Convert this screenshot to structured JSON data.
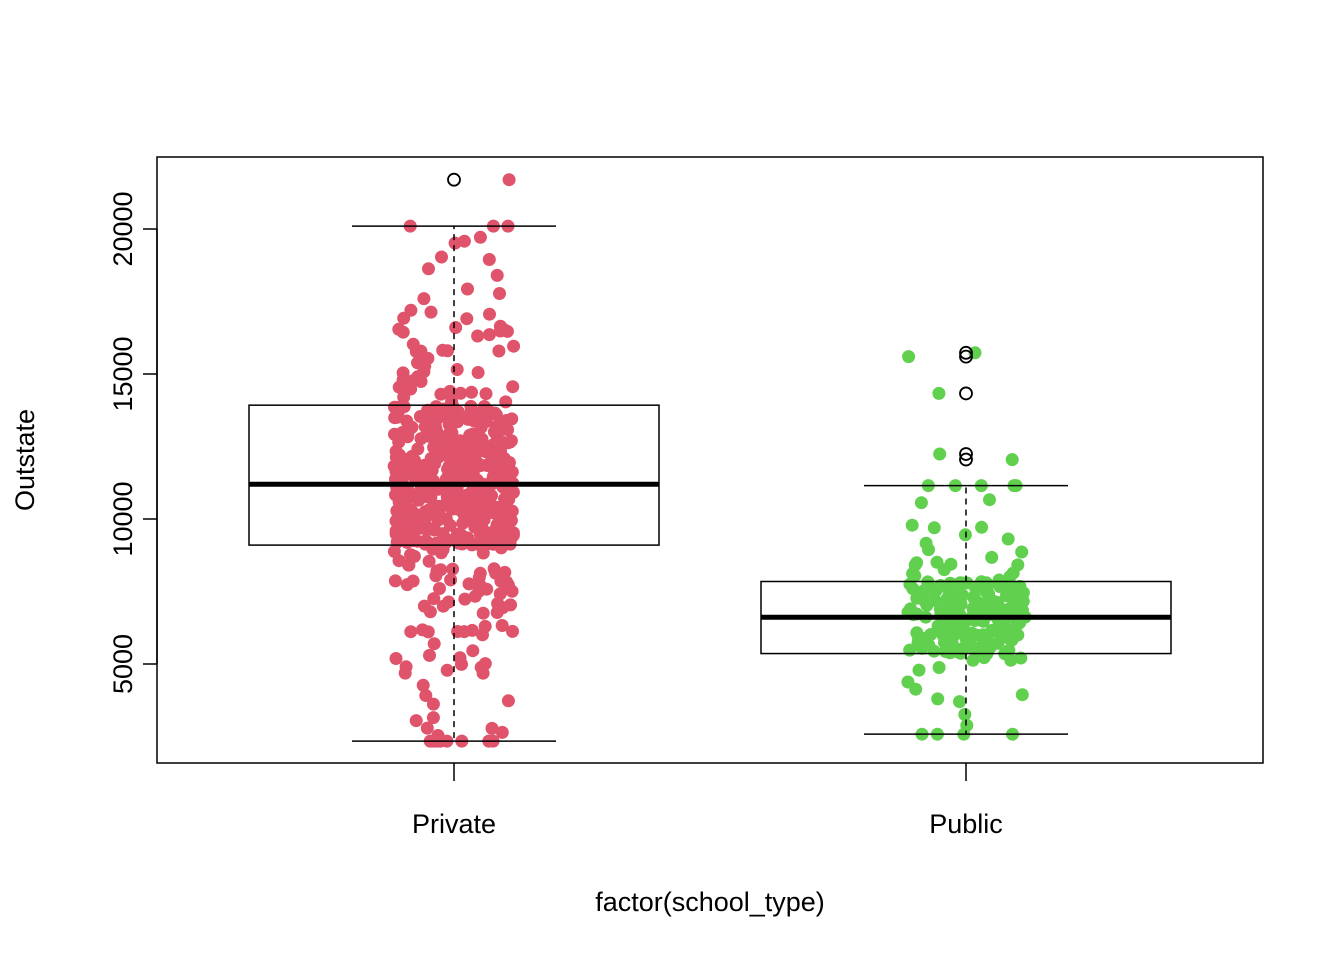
{
  "chart_data": {
    "type": "boxplot-with-jitter",
    "title": "",
    "xlabel": "factor(school_type)",
    "ylabel": "Outstate",
    "ylim": [
      2000,
      22500
    ],
    "yticks": [
      5000,
      10000,
      15000,
      20000
    ],
    "grid": false,
    "legend": "none",
    "colors": {
      "Private": "#DF536B",
      "Public": "#61D04F",
      "box": "#000000"
    },
    "groups": [
      {
        "name": "Private",
        "whisker_low": 2340,
        "q1": 9100,
        "median": 11200,
        "q3": 13925,
        "whisker_high": 20100,
        "outliers": [
          21700
        ],
        "n_points": 565
      },
      {
        "name": "Public",
        "whisker_low": 2580,
        "q1": 5360,
        "median": 6610,
        "q3": 7845,
        "whisker_high": 11150,
        "outliers": [
          15730,
          15600,
          14330,
          12240,
          12050
        ],
        "n_points": 212
      }
    ]
  }
}
